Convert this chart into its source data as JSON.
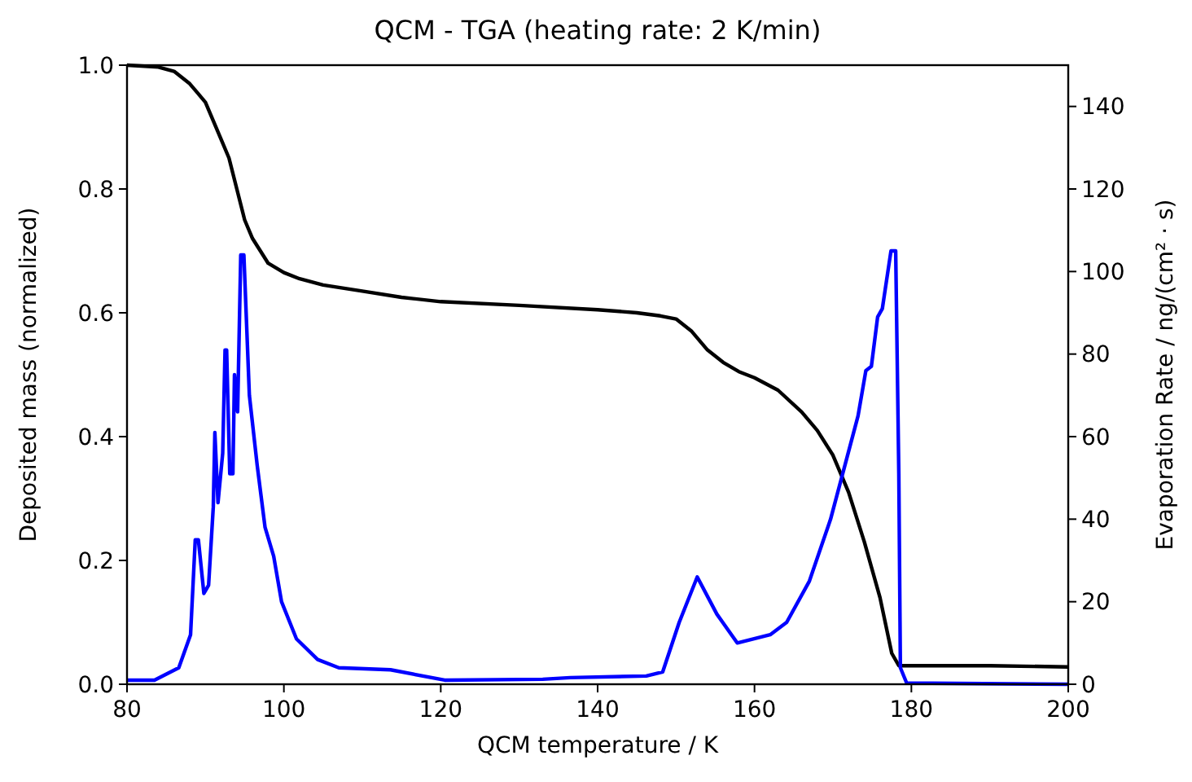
{
  "chart_data": {
    "type": "line",
    "title": "QCM - TGA (heating rate: 2 K/min)",
    "xlabel": "QCM temperature / K",
    "ylabel": "Deposited mass (normalized)",
    "y2label": "Evaporation Rate / ng/(cm² · s)",
    "xlim": [
      80,
      200
    ],
    "xticks": [
      80,
      100,
      120,
      140,
      160,
      180,
      200
    ],
    "ylim": [
      0,
      1
    ],
    "yticks": [
      {
        "value": 0,
        "label": "0.0"
      },
      0.2,
      0.4,
      0.6,
      0.8,
      {
        "value": 1,
        "label": "1.0"
      }
    ],
    "y2lim": [
      0,
      150
    ],
    "y2ticks": [
      0,
      20,
      40,
      60,
      80,
      100,
      120,
      140
    ],
    "grid": false,
    "line_style": "solid",
    "series": [
      {
        "color": "#000000",
        "x": [
          80,
          84,
          86,
          88,
          89,
          90,
          91,
          92,
          93,
          94,
          95,
          96,
          97,
          98,
          100,
          102,
          105,
          110,
          115,
          120,
          130,
          140,
          145,
          148,
          150,
          152,
          154,
          156,
          158,
          160,
          163,
          166,
          168,
          170,
          172,
          174,
          176,
          177.5,
          178.4,
          190,
          200
        ],
        "values": [
          1,
          0.997,
          0.99,
          0.97,
          0.955,
          0.94,
          0.91,
          0.88,
          0.85,
          0.8,
          0.75,
          0.72,
          0.7,
          0.68,
          0.665,
          0.655,
          0.645,
          0.635,
          0.625,
          0.618,
          0.612,
          0.605,
          0.6,
          0.595,
          0.59,
          0.57,
          0.54,
          0.52,
          0.505,
          0.495,
          0.475,
          0.44,
          0.41,
          0.37,
          0.31,
          0.23,
          0.14,
          0.05,
          0.03,
          0.03,
          0.028
        ]
      },
      {
        "color": "#0000ff",
        "axis": "y2",
        "x": [
          80,
          83.5,
          86.6,
          88.1,
          88.7,
          89.1,
          89.8,
          90.4,
          91,
          91.2,
          91.6,
          92.2,
          92.5,
          92.7,
          93.1,
          93.5,
          93.7,
          94.1,
          94.5,
          94.9,
          95.6,
          96.6,
          97.6,
          98.7,
          99.7,
          101.6,
          104.3,
          107,
          113.6,
          120.5,
          133,
          136.5,
          146.2,
          148.3,
          150.4,
          152.7,
          155.2,
          157.8,
          162,
          164.1,
          167,
          169.7,
          171.8,
          173.2,
          174.2,
          174.9,
          175.7,
          176.3,
          177.4,
          178,
          178.4,
          178.6,
          179.4,
          200
        ],
        "values": [
          1,
          1,
          4,
          12,
          35,
          35,
          22,
          24,
          43,
          61,
          44,
          56,
          81,
          81,
          51,
          51,
          75,
          66,
          104,
          104,
          70,
          53,
          38,
          31,
          20,
          11,
          6,
          4,
          3.5,
          1,
          1.2,
          1.6,
          2,
          3,
          15,
          26,
          17,
          10,
          12,
          15,
          25,
          40,
          55,
          65,
          76,
          77,
          89,
          91,
          105,
          105,
          51,
          4,
          0.3,
          0
        ]
      }
    ]
  }
}
